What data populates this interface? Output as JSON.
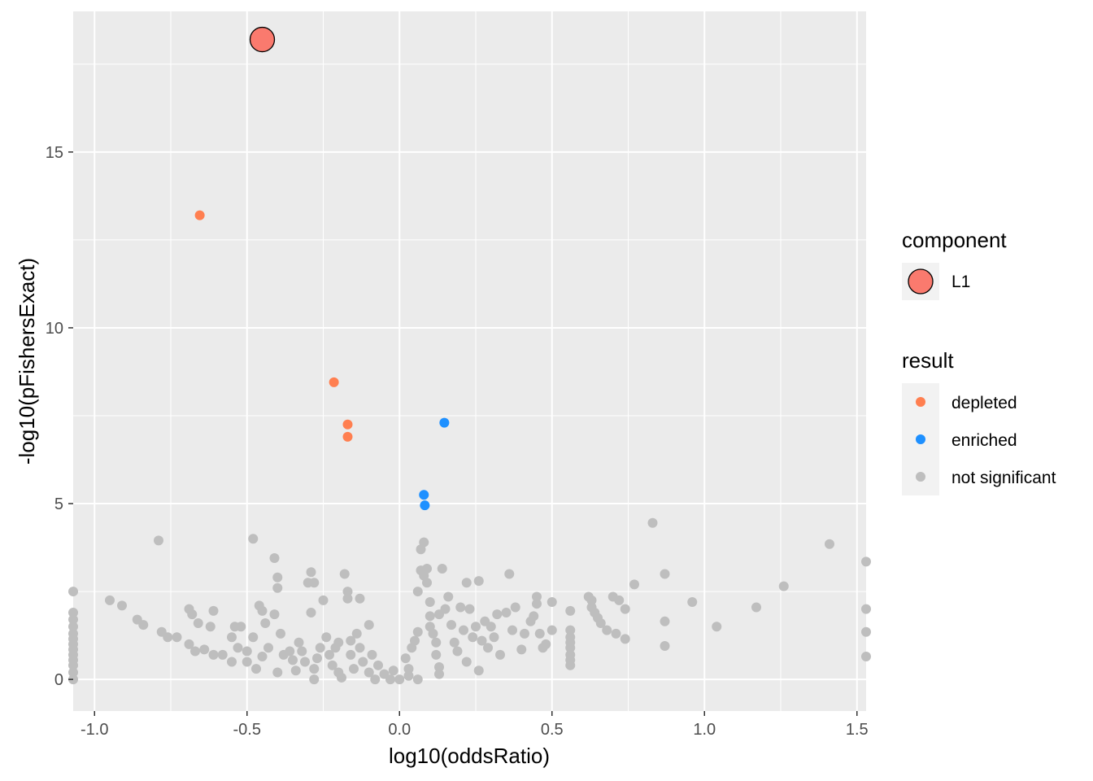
{
  "chart_data": {
    "type": "scatter",
    "title": "",
    "xlabel": "log10(oddsRatio)",
    "ylabel": "-log10(pFishersExact)",
    "xlim": [
      -1.07,
      1.53
    ],
    "ylim": [
      -0.9,
      19.0
    ],
    "x_ticks": [
      -1.0,
      -0.5,
      0.0,
      0.5,
      1.0,
      1.5
    ],
    "x_tick_labels": [
      "-1.0",
      "-0.5",
      "0.0",
      "0.5",
      "1.0",
      "1.5"
    ],
    "y_ticks": [
      0,
      5,
      10,
      15
    ],
    "y_tick_labels": [
      "0",
      "5",
      "10",
      "15"
    ],
    "grid": true,
    "legend_position": "right",
    "colors": {
      "panel": "#ebebeb",
      "grid": "#ffffff",
      "depleted": "#ff7f50",
      "enriched": "#1e90ff",
      "not_significant": "#bebebe",
      "component_L1": "#fa7a6e"
    },
    "legends": [
      {
        "title": "component",
        "entries": [
          {
            "label": "L1",
            "key": "component_L1",
            "shape": "large-circle-outlined"
          }
        ]
      },
      {
        "title": "result",
        "entries": [
          {
            "label": "depleted",
            "key": "depleted",
            "shape": "circle"
          },
          {
            "label": "enriched",
            "key": "enriched",
            "shape": "circle"
          },
          {
            "label": "not significant",
            "key": "not_significant",
            "shape": "circle"
          }
        ]
      }
    ],
    "series": [
      {
        "name": "L1",
        "component": true,
        "color_key": "component_L1",
        "points": [
          [
            -0.45,
            18.2
          ]
        ]
      },
      {
        "name": "depleted",
        "color_key": "depleted",
        "points": [
          [
            -0.655,
            13.2
          ],
          [
            -0.215,
            8.45
          ],
          [
            -0.17,
            7.25
          ],
          [
            -0.17,
            6.9
          ]
        ]
      },
      {
        "name": "enriched",
        "color_key": "enriched",
        "points": [
          [
            0.147,
            7.3
          ],
          [
            0.08,
            5.25
          ],
          [
            0.083,
            4.95
          ]
        ]
      },
      {
        "name": "not significant",
        "color_key": "not_significant",
        "points": [
          [
            -1.07,
            2.5
          ],
          [
            -1.07,
            1.9
          ],
          [
            -1.07,
            1.7
          ],
          [
            -1.07,
            1.5
          ],
          [
            -1.07,
            1.3
          ],
          [
            -1.07,
            1.15
          ],
          [
            -1.07,
            1.0
          ],
          [
            -1.07,
            0.85
          ],
          [
            -1.07,
            0.7
          ],
          [
            -1.07,
            0.55
          ],
          [
            -1.07,
            0.4
          ],
          [
            -1.07,
            0.2
          ],
          [
            -1.07,
            0.0
          ],
          [
            -0.95,
            2.25
          ],
          [
            -0.91,
            2.1
          ],
          [
            -0.86,
            1.7
          ],
          [
            -0.84,
            1.55
          ],
          [
            -0.79,
            3.95
          ],
          [
            -0.78,
            1.35
          ],
          [
            -0.76,
            1.2
          ],
          [
            -0.73,
            1.2
          ],
          [
            -0.69,
            2.0
          ],
          [
            -0.68,
            1.85
          ],
          [
            -0.69,
            1.0
          ],
          [
            -0.67,
            0.8
          ],
          [
            -0.66,
            1.6
          ],
          [
            -0.64,
            0.85
          ],
          [
            -0.62,
            1.5
          ],
          [
            -0.61,
            1.95
          ],
          [
            -0.61,
            0.7
          ],
          [
            -0.58,
            0.7
          ],
          [
            -0.55,
            1.2
          ],
          [
            -0.54,
            1.5
          ],
          [
            -0.52,
            1.5
          ],
          [
            -0.55,
            0.5
          ],
          [
            -0.53,
            0.9
          ],
          [
            -0.5,
            0.8
          ],
          [
            -0.5,
            0.5
          ],
          [
            -0.48,
            4.0
          ],
          [
            -0.48,
            1.2
          ],
          [
            -0.47,
            0.3
          ],
          [
            -0.46,
            2.1
          ],
          [
            -0.45,
            1.95
          ],
          [
            -0.45,
            0.65
          ],
          [
            -0.44,
            1.6
          ],
          [
            -0.43,
            0.9
          ],
          [
            -0.41,
            3.45
          ],
          [
            -0.41,
            1.85
          ],
          [
            -0.4,
            2.9
          ],
          [
            -0.4,
            2.6
          ],
          [
            -0.4,
            0.2
          ],
          [
            -0.39,
            1.3
          ],
          [
            -0.38,
            0.7
          ],
          [
            -0.36,
            0.8
          ],
          [
            -0.35,
            0.55
          ],
          [
            -0.34,
            0.25
          ],
          [
            -0.33,
            1.05
          ],
          [
            -0.32,
            0.8
          ],
          [
            -0.31,
            0.5
          ],
          [
            -0.3,
            2.75
          ],
          [
            -0.29,
            3.05
          ],
          [
            -0.28,
            2.75
          ],
          [
            -0.29,
            1.9
          ],
          [
            -0.28,
            0.3
          ],
          [
            -0.28,
            0.0
          ],
          [
            -0.27,
            0.6
          ],
          [
            -0.26,
            0.9
          ],
          [
            -0.25,
            2.25
          ],
          [
            -0.24,
            1.2
          ],
          [
            -0.23,
            0.7
          ],
          [
            -0.22,
            0.4
          ],
          [
            -0.21,
            0.9
          ],
          [
            -0.2,
            1.05
          ],
          [
            -0.2,
            0.2
          ],
          [
            -0.19,
            0.05
          ],
          [
            -0.18,
            3.0
          ],
          [
            -0.17,
            2.5
          ],
          [
            -0.17,
            2.3
          ],
          [
            -0.16,
            1.1
          ],
          [
            -0.16,
            0.7
          ],
          [
            -0.15,
            0.3
          ],
          [
            -0.14,
            1.3
          ],
          [
            -0.13,
            2.3
          ],
          [
            -0.13,
            0.9
          ],
          [
            -0.12,
            0.5
          ],
          [
            -0.1,
            1.55
          ],
          [
            -0.1,
            0.2
          ],
          [
            -0.09,
            0.7
          ],
          [
            -0.08,
            0.0
          ],
          [
            -0.07,
            0.4
          ],
          [
            -0.05,
            0.15
          ],
          [
            -0.03,
            0.0
          ],
          [
            -0.02,
            0.25
          ],
          [
            0.0,
            0.0
          ],
          [
            0.02,
            0.6
          ],
          [
            0.03,
            0.1
          ],
          [
            0.03,
            0.3
          ],
          [
            0.04,
            0.9
          ],
          [
            0.05,
            1.1
          ],
          [
            0.06,
            1.35
          ],
          [
            0.06,
            2.5
          ],
          [
            0.06,
            0.0
          ],
          [
            0.07,
            3.1
          ],
          [
            0.07,
            3.7
          ],
          [
            0.08,
            3.9
          ],
          [
            0.08,
            2.95
          ],
          [
            0.09,
            3.15
          ],
          [
            0.09,
            2.75
          ],
          [
            0.1,
            2.2
          ],
          [
            0.1,
            1.8
          ],
          [
            0.1,
            1.5
          ],
          [
            0.11,
            1.3
          ],
          [
            0.12,
            1.05
          ],
          [
            0.12,
            0.7
          ],
          [
            0.13,
            0.35
          ],
          [
            0.13,
            0.15
          ],
          [
            0.13,
            1.85
          ],
          [
            0.14,
            3.15
          ],
          [
            0.15,
            2.0
          ],
          [
            0.16,
            2.35
          ],
          [
            0.17,
            1.55
          ],
          [
            0.18,
            1.05
          ],
          [
            0.19,
            0.8
          ],
          [
            0.2,
            2.05
          ],
          [
            0.21,
            1.4
          ],
          [
            0.22,
            2.75
          ],
          [
            0.22,
            0.5
          ],
          [
            0.23,
            2.0
          ],
          [
            0.24,
            1.2
          ],
          [
            0.25,
            1.5
          ],
          [
            0.26,
            2.8
          ],
          [
            0.26,
            0.25
          ],
          [
            0.27,
            1.1
          ],
          [
            0.28,
            1.65
          ],
          [
            0.29,
            0.9
          ],
          [
            0.3,
            1.5
          ],
          [
            0.31,
            1.2
          ],
          [
            0.32,
            1.85
          ],
          [
            0.33,
            0.7
          ],
          [
            0.35,
            1.9
          ],
          [
            0.36,
            3.0
          ],
          [
            0.37,
            1.4
          ],
          [
            0.38,
            2.05
          ],
          [
            0.4,
            0.85
          ],
          [
            0.41,
            1.3
          ],
          [
            0.43,
            1.65
          ],
          [
            0.44,
            1.8
          ],
          [
            0.45,
            2.35
          ],
          [
            0.45,
            2.15
          ],
          [
            0.46,
            1.3
          ],
          [
            0.47,
            0.9
          ],
          [
            0.48,
            1.0
          ],
          [
            0.5,
            2.2
          ],
          [
            0.5,
            1.4
          ],
          [
            0.56,
            1.95
          ],
          [
            0.56,
            1.4
          ],
          [
            0.56,
            1.2
          ],
          [
            0.56,
            1.05
          ],
          [
            0.56,
            0.9
          ],
          [
            0.56,
            0.7
          ],
          [
            0.56,
            0.55
          ],
          [
            0.56,
            0.4
          ],
          [
            0.62,
            2.35
          ],
          [
            0.63,
            2.25
          ],
          [
            0.63,
            2.05
          ],
          [
            0.64,
            1.9
          ],
          [
            0.65,
            1.75
          ],
          [
            0.66,
            1.6
          ],
          [
            0.68,
            1.4
          ],
          [
            0.7,
            2.35
          ],
          [
            0.72,
            2.25
          ],
          [
            0.71,
            1.3
          ],
          [
            0.74,
            2.0
          ],
          [
            0.74,
            1.15
          ],
          [
            0.77,
            2.7
          ],
          [
            0.83,
            4.45
          ],
          [
            0.87,
            3.0
          ],
          [
            0.87,
            1.65
          ],
          [
            0.87,
            0.95
          ],
          [
            0.96,
            2.2
          ],
          [
            1.04,
            1.5
          ],
          [
            1.17,
            2.05
          ],
          [
            1.26,
            2.65
          ],
          [
            1.41,
            3.85
          ],
          [
            1.53,
            3.35
          ],
          [
            1.53,
            2.0
          ],
          [
            1.53,
            1.35
          ],
          [
            1.53,
            0.65
          ]
        ]
      }
    ]
  }
}
